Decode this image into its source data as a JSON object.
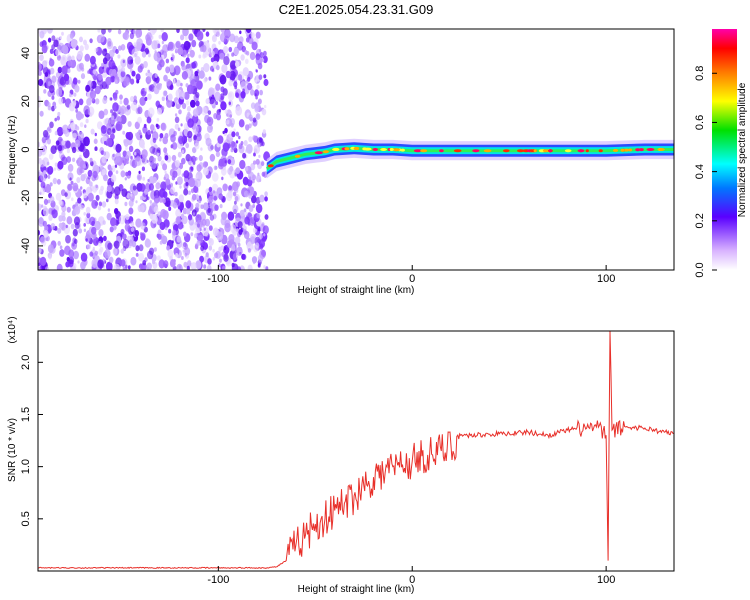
{
  "title": "C2E1.2025.054.23.31.G09",
  "chart_data": [
    {
      "type": "heatmap",
      "xlabel": "Height of straight line (km)",
      "ylabel": "Frequency (Hz)",
      "xlim": [
        -193,
        135
      ],
      "ylim": [
        -50,
        50
      ],
      "x_ticks": [
        -100,
        0,
        100
      ],
      "y_ticks": [
        40,
        20,
        0,
        -20,
        -40
      ],
      "noise_region": [
        -193,
        -75
      ],
      "signal_track": [
        [
          -75,
          -8
        ],
        [
          -70,
          -5
        ],
        [
          -65,
          -4
        ],
        [
          -60,
          -3
        ],
        [
          -55,
          -2
        ],
        [
          -50,
          -1.5
        ],
        [
          -45,
          -1
        ],
        [
          -40,
          0
        ],
        [
          -30,
          0.5
        ],
        [
          -20,
          0
        ],
        [
          -10,
          0
        ],
        [
          0,
          -0.5
        ],
        [
          20,
          -0.5
        ],
        [
          50,
          -0.5
        ],
        [
          80,
          -0.5
        ],
        [
          100,
          -0.5
        ],
        [
          120,
          0
        ],
        [
          135,
          0
        ]
      ],
      "colorbar": {
        "label": "Normalized spectral amplitude",
        "range": [
          0,
          0.98
        ],
        "ticks": [
          "0.0",
          "0.2",
          "0.4",
          "0.6",
          "0.8"
        ],
        "tick_values": [
          0.0,
          0.2,
          0.4,
          0.6,
          0.8
        ]
      }
    },
    {
      "type": "line",
      "xlabel": "Height of straight line (km)",
      "ylabel": "SNR (10 * v/v)",
      "y_multiplier": "(x10⁴)",
      "xlim": [
        -193,
        135
      ],
      "ylim": [
        0,
        2.3
      ],
      "x_ticks": [
        -100,
        0,
        100
      ],
      "y_ticks": [
        "0.5",
        "1.0",
        "1.5",
        "2.0"
      ],
      "y_tick_values": [
        0.5,
        1.0,
        1.5,
        2.0
      ],
      "color": "#e8302a",
      "points": [
        [
          -193,
          0.03
        ],
        [
          -150,
          0.03
        ],
        [
          -100,
          0.03
        ],
        [
          -75,
          0.03
        ],
        [
          -70,
          0.04
        ],
        [
          -65,
          0.1
        ],
        [
          -60,
          0.25
        ],
        [
          -55,
          0.35
        ],
        [
          -50,
          0.45
        ],
        [
          -45,
          0.5
        ],
        [
          -40,
          0.58
        ],
        [
          -35,
          0.65
        ],
        [
          -30,
          0.72
        ],
        [
          -25,
          0.82
        ],
        [
          -20,
          0.9
        ],
        [
          -15,
          0.95
        ],
        [
          -10,
          1.0
        ],
        [
          -5,
          1.02
        ],
        [
          0,
          1.05
        ],
        [
          5,
          1.1
        ],
        [
          10,
          1.12
        ],
        [
          15,
          1.15
        ],
        [
          20,
          1.2
        ],
        [
          25,
          1.3
        ],
        [
          30,
          1.3
        ],
        [
          40,
          1.31
        ],
        [
          50,
          1.32
        ],
        [
          60,
          1.33
        ],
        [
          70,
          1.3
        ],
        [
          80,
          1.35
        ],
        [
          90,
          1.37
        ],
        [
          95,
          1.38
        ],
        [
          100,
          1.3
        ],
        [
          101,
          0.1
        ],
        [
          102,
          2.3
        ],
        [
          103,
          1.35
        ],
        [
          110,
          1.38
        ],
        [
          120,
          1.37
        ],
        [
          130,
          1.33
        ],
        [
          135,
          1.32
        ]
      ]
    }
  ]
}
